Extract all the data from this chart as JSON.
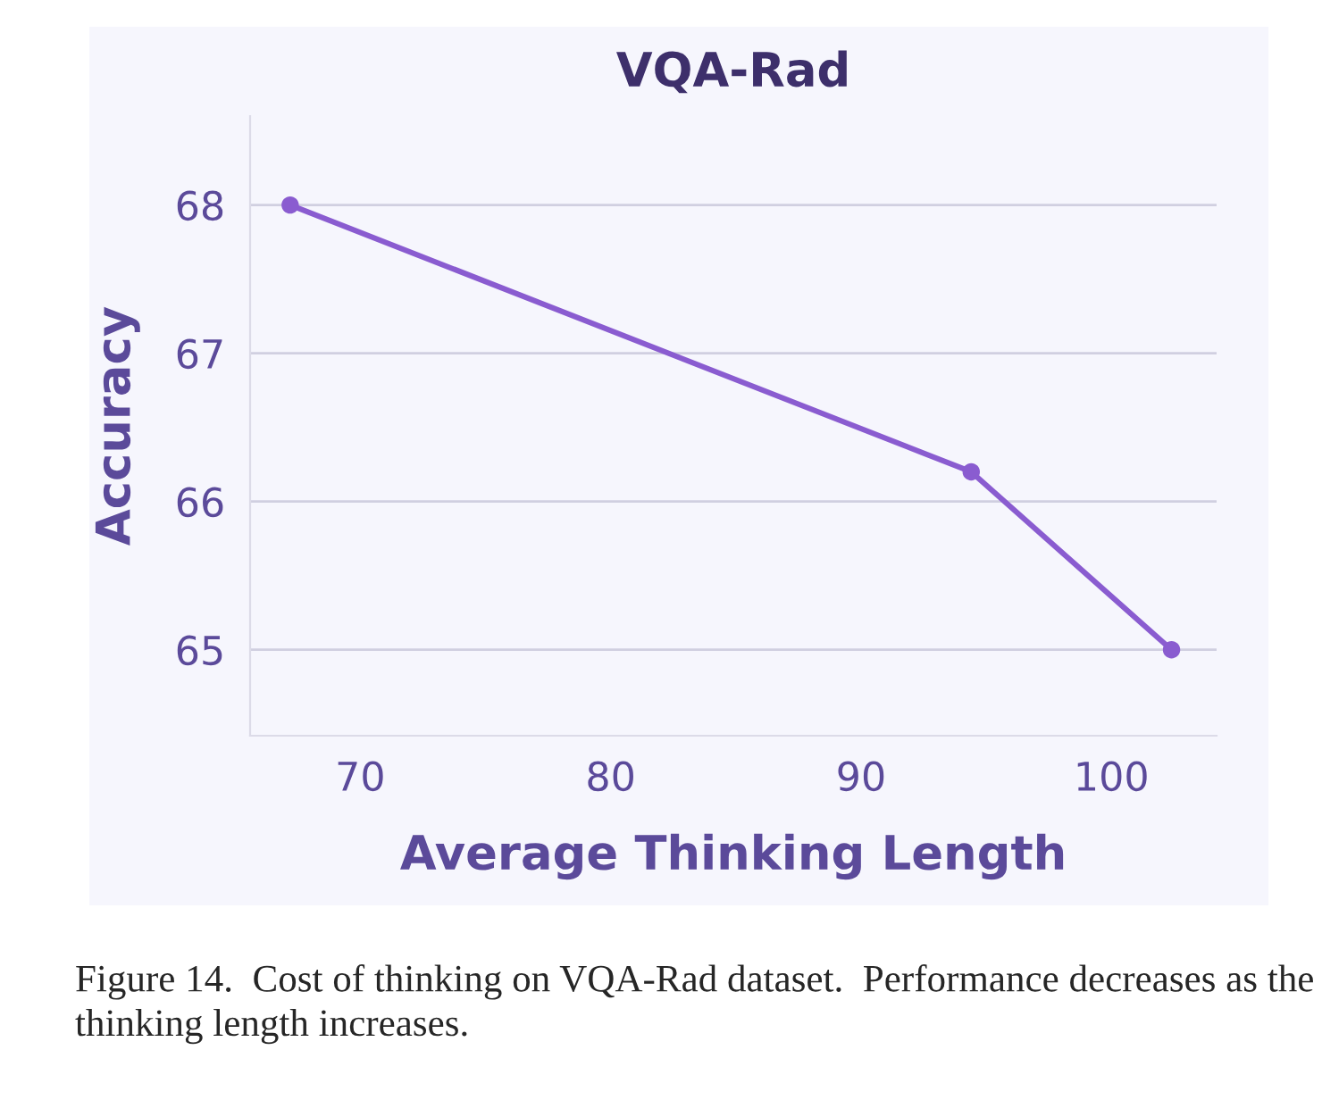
{
  "chart_data": {
    "type": "line",
    "title": "VQA-Rad",
    "xlabel": "Average Thinking Length",
    "ylabel": "Accuracy",
    "x": [
      67.2,
      94.4,
      102.4
    ],
    "series": [
      {
        "color": "#8a5cd0",
        "values": [
          68.0,
          66.2,
          65.0
        ]
      }
    ],
    "xlim": [
      65.6,
      104.2
    ],
    "xticks": [
      70,
      80,
      90,
      100
    ],
    "ylim": [
      64.42,
      68.6
    ],
    "yticks": [
      65,
      66,
      67,
      68
    ],
    "grid": "y",
    "marker": "circle",
    "line_style": "solid",
    "annotations": [
      "Figure 14.  Cost of thinking on VQA-Rad dataset.  Performance decreases as the thinking length increases."
    ]
  }
}
